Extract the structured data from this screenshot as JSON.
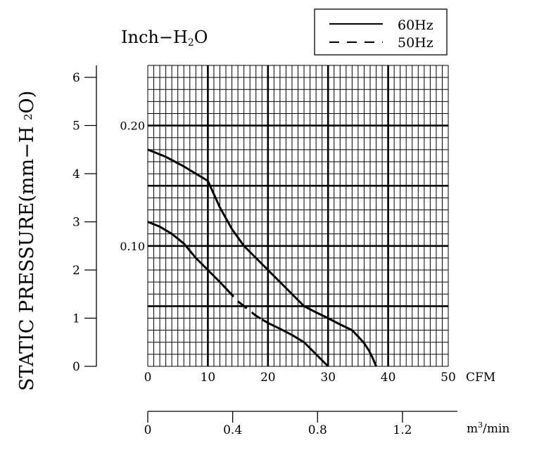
{
  "chart_data": {
    "type": "line",
    "title": "Inch-H2O",
    "title_parts": {
      "main": "Inch−H",
      "sub": "2",
      "end": "O"
    },
    "ylabel": "STATIC PRESSURE(mm-H2O)",
    "ylabel_parts": {
      "main": "STATIC PRESSURE(mm−H ",
      "sub": "2",
      "end": "O)"
    },
    "xlabel": "CFM",
    "xlabel_secondary": "m3/min",
    "xlabel_secondary_parts": {
      "pre": "m",
      "sup": "3",
      "post": "/min"
    },
    "xlim": [
      0,
      50
    ],
    "ylim": [
      0,
      6.25
    ],
    "x_ticks": [
      "0",
      "10",
      "20",
      "30",
      "40",
      "50"
    ],
    "y_ticks_mm": [
      "0",
      "1",
      "2",
      "3",
      "4",
      "5",
      "6"
    ],
    "y_ticks_inch": [
      "0.10",
      "0.20"
    ],
    "x_ticks_m3min": [
      "0",
      "0.4",
      "0.8",
      "1.2"
    ],
    "grid": true,
    "legend_position": "top-right",
    "legend": [
      {
        "name": "60Hz",
        "style": "solid"
      },
      {
        "name": "50Hz",
        "style": "dashed"
      }
    ],
    "series": [
      {
        "name": "60Hz",
        "x": [
          0,
          3,
          6,
          8,
          10,
          12,
          14,
          16,
          18,
          20,
          22,
          24,
          26,
          28,
          30,
          32,
          34,
          35,
          36,
          36.8,
          37.4,
          38
        ],
        "y": [
          4.5,
          4.35,
          4.15,
          4.0,
          3.85,
          3.3,
          2.85,
          2.5,
          2.25,
          2.0,
          1.75,
          1.5,
          1.25,
          1.12,
          1.0,
          0.87,
          0.75,
          0.62,
          0.48,
          0.33,
          0.18,
          0.0
        ]
      },
      {
        "name": "50Hz",
        "x": [
          0,
          2,
          4,
          6,
          8,
          10,
          12,
          13.5,
          15,
          16.5,
          18,
          20,
          22,
          24,
          26,
          28,
          30
        ],
        "y": [
          3.0,
          2.9,
          2.75,
          2.55,
          2.25,
          2.0,
          1.75,
          1.55,
          1.35,
          1.2,
          1.05,
          0.9,
          0.78,
          0.65,
          0.5,
          0.25,
          0.0
        ],
        "dashed_range": [
          13,
          19
        ]
      }
    ]
  }
}
